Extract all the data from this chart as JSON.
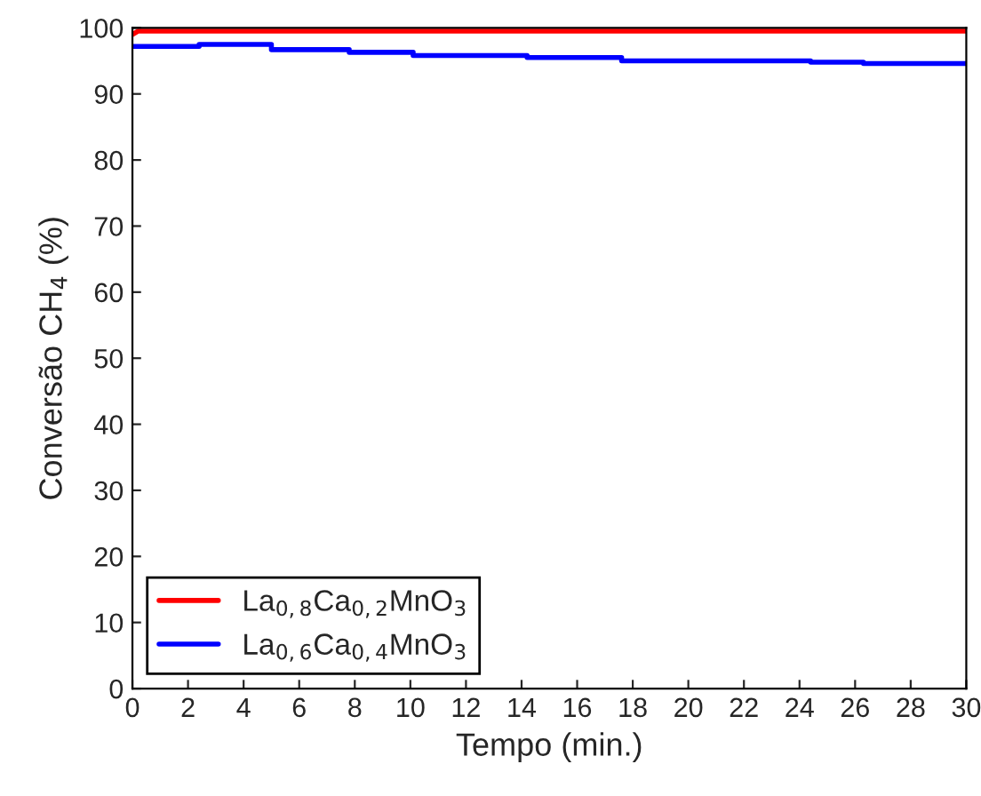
{
  "chart_data": {
    "type": "line",
    "xlabel": "Tempo (min.)",
    "ylabel": "Conversão CH$_{4}$ (%)",
    "xlim": [
      0,
      30
    ],
    "xticks": [
      0,
      2,
      4,
      6,
      8,
      10,
      12,
      14,
      16,
      18,
      20,
      22,
      24,
      26,
      28,
      30
    ],
    "ylim": [
      0,
      100
    ],
    "yticks": [
      0,
      10,
      20,
      30,
      40,
      50,
      60,
      70,
      80,
      90,
      100
    ],
    "grid": false,
    "legend": "bottom left",
    "line_style": "solid",
    "marker": "none",
    "series": [
      {
        "name": "La$_{0,8}$Ca$_{0,2}$MnO$_{3}$",
        "color": "#ff0000",
        "x": [
          0,
          0.2,
          30
        ],
        "values": [
          99.0,
          99.5,
          99.5
        ]
      },
      {
        "name": "La$_{0,6}$Ca$_{0,4}$MnO$_{3}$",
        "color": "#0000ff",
        "x": [
          0,
          2.4,
          2.4,
          5.0,
          5.0,
          7.8,
          7.8,
          10.1,
          10.1,
          14.2,
          14.2,
          17.6,
          17.6,
          24.4,
          24.4,
          26.3,
          26.3,
          30
        ],
        "values": [
          97.2,
          97.2,
          97.5,
          97.5,
          96.7,
          96.7,
          96.3,
          96.3,
          95.8,
          95.8,
          95.5,
          95.5,
          95.0,
          95.0,
          94.8,
          94.8,
          94.6,
          94.6
        ]
      }
    ]
  }
}
